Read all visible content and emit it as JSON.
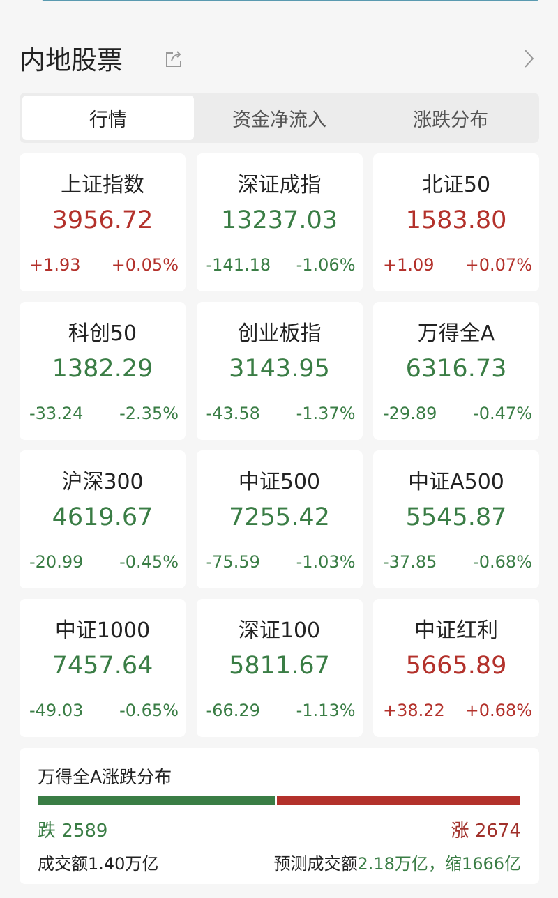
{
  "header": {
    "title": "内地股票"
  },
  "tabs": [
    {
      "label": "行情",
      "active": true
    },
    {
      "label": "资金净流入",
      "active": false
    },
    {
      "label": "涨跌分布",
      "active": false
    }
  ],
  "colors": {
    "up": "#b3312b",
    "down": "#3a7d45"
  },
  "indices": [
    {
      "name": "上证指数",
      "value": "3956.72",
      "change": "+1.93",
      "pct": "+0.05%",
      "dir": "up"
    },
    {
      "name": "深证成指",
      "value": "13237.03",
      "change": "-141.18",
      "pct": "-1.06%",
      "dir": "down"
    },
    {
      "name": "北证50",
      "value": "1583.80",
      "change": "+1.09",
      "pct": "+0.07%",
      "dir": "up"
    },
    {
      "name": "科创50",
      "value": "1382.29",
      "change": "-33.24",
      "pct": "-2.35%",
      "dir": "down"
    },
    {
      "name": "创业板指",
      "value": "3143.95",
      "change": "-43.58",
      "pct": "-1.37%",
      "dir": "down"
    },
    {
      "name": "万得全A",
      "value": "6316.73",
      "change": "-29.89",
      "pct": "-0.47%",
      "dir": "down"
    },
    {
      "name": "沪深300",
      "value": "4619.67",
      "change": "-20.99",
      "pct": "-0.45%",
      "dir": "down"
    },
    {
      "name": "中证500",
      "value": "7255.42",
      "change": "-75.59",
      "pct": "-1.03%",
      "dir": "down"
    },
    {
      "name": "中证A500",
      "value": "5545.87",
      "change": "-37.85",
      "pct": "-0.68%",
      "dir": "down"
    },
    {
      "name": "中证1000",
      "value": "7457.64",
      "change": "-49.03",
      "pct": "-0.65%",
      "dir": "down"
    },
    {
      "name": "深证100",
      "value": "5811.67",
      "change": "-66.29",
      "pct": "-1.13%",
      "dir": "down"
    },
    {
      "name": "中证红利",
      "value": "5665.89",
      "change": "+38.22",
      "pct": "+0.68%",
      "dir": "up"
    }
  ],
  "distribution": {
    "title": "万得全A涨跌分布",
    "fall_label": "跌",
    "fall_count": 2589,
    "rise_label": "涨",
    "rise_count": 2674,
    "volume_label": "成交额",
    "volume": "1.40万亿",
    "predicted_label": "预测成交额",
    "predicted": "2.18万亿，缩1666亿"
  }
}
